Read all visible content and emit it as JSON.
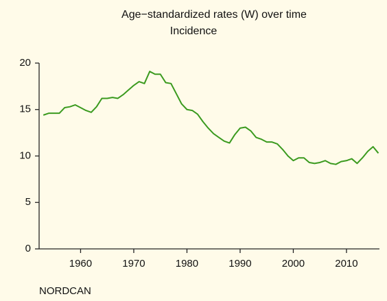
{
  "chart_data": {
    "type": "line",
    "title": "Age−standardized rates (W) over time",
    "subtitle": "Incidence",
    "source": "NORDCAN",
    "x": [
      1953,
      1954,
      1955,
      1956,
      1957,
      1958,
      1959,
      1960,
      1961,
      1962,
      1963,
      1964,
      1965,
      1966,
      1967,
      1968,
      1969,
      1970,
      1971,
      1972,
      1973,
      1974,
      1975,
      1976,
      1977,
      1978,
      1979,
      1980,
      1981,
      1982,
      1983,
      1984,
      1985,
      1986,
      1987,
      1988,
      1989,
      1990,
      1991,
      1992,
      1993,
      1994,
      1995,
      1996,
      1997,
      1998,
      1999,
      2000,
      2001,
      2002,
      2003,
      2004,
      2005,
      2006,
      2007,
      2008,
      2009,
      2010,
      2011,
      2012,
      2013,
      2014,
      2015,
      2016
    ],
    "series": [
      {
        "name": "Incidence",
        "color": "#3a9a1e",
        "values": [
          14.4,
          14.6,
          14.6,
          14.6,
          15.2,
          15.3,
          15.5,
          15.2,
          14.9,
          14.7,
          15.3,
          16.2,
          16.2,
          16.3,
          16.2,
          16.6,
          17.1,
          17.6,
          18.0,
          17.8,
          19.1,
          18.8,
          18.8,
          17.9,
          17.8,
          16.7,
          15.6,
          15.0,
          14.9,
          14.5,
          13.7,
          13.0,
          12.4,
          12.0,
          11.6,
          11.4,
          12.3,
          13.0,
          13.1,
          12.7,
          12.0,
          11.8,
          11.5,
          11.5,
          11.3,
          10.7,
          10.0,
          9.5,
          9.8,
          9.8,
          9.3,
          9.2,
          9.3,
          9.5,
          9.2,
          9.1,
          9.4,
          9.5,
          9.7,
          9.2,
          9.8,
          10.5,
          11.0,
          10.3
        ]
      }
    ],
    "xlim": [
      1952.2,
      2016.2
    ],
    "xticks": [
      1960,
      1970,
      1980,
      1990,
      2000,
      2010
    ],
    "ylim": [
      0,
      20
    ],
    "yticks": [
      0,
      5,
      10,
      15,
      20
    ],
    "grid": false
  }
}
